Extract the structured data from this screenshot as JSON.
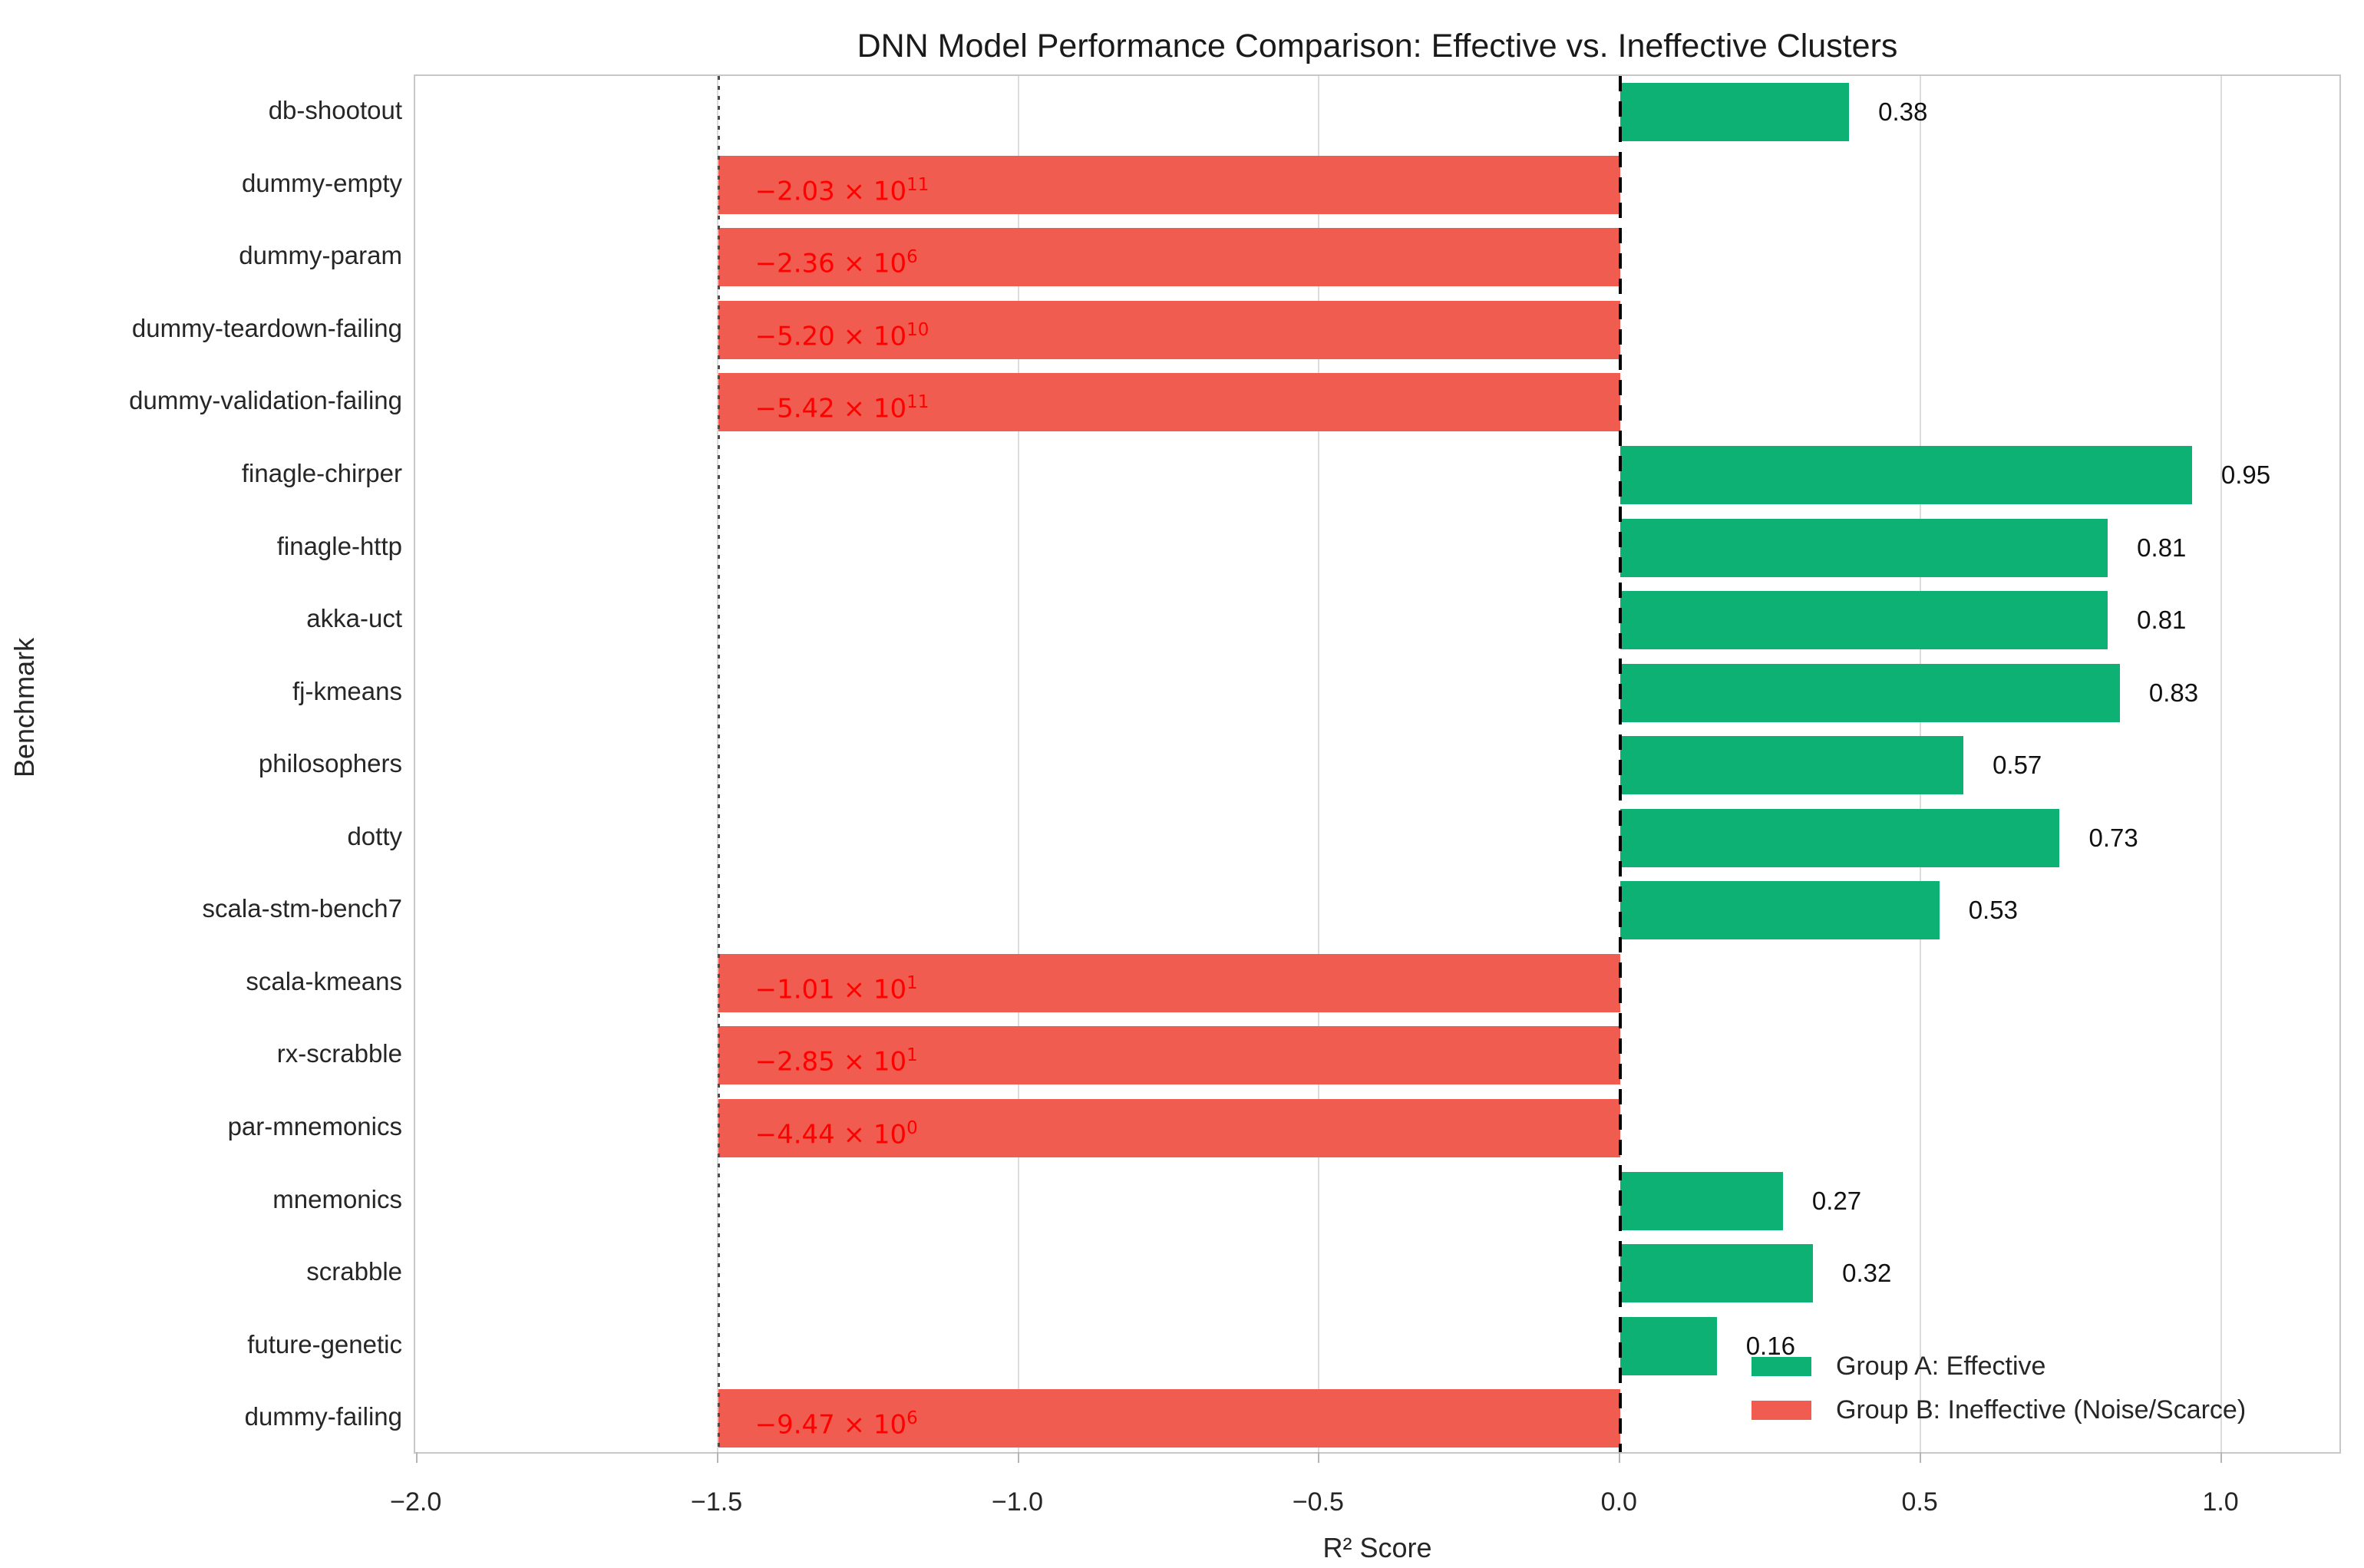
{
  "chart_data": {
    "type": "bar",
    "orientation": "horizontal",
    "title": "DNN Model Performance Comparison: Effective vs. Ineffective Clusters",
    "xlabel": "R² Score",
    "ylabel": "Benchmark",
    "xlim": [
      -2.0,
      1.2
    ],
    "xticks": [
      -2.0,
      -1.5,
      -1.0,
      -0.5,
      0.0,
      0.5,
      1.0
    ],
    "xtick_labels": [
      "−2.0",
      "−1.5",
      "−1.0",
      "−0.5",
      "0.0",
      "0.5",
      "1.0"
    ],
    "grid": true,
    "zero_line_x": 0.0,
    "negative_clip_x": -1.5,
    "bars": [
      {
        "name": "db-shootout",
        "group": "A",
        "value": 0.38,
        "label": "0.38"
      },
      {
        "name": "dummy-empty",
        "group": "B",
        "value": -203000000000.0,
        "clipped_at": -1.5,
        "label_mantissa": "−2.03 × 10",
        "label_exponent": "11"
      },
      {
        "name": "dummy-param",
        "group": "B",
        "value": -2360000.0,
        "clipped_at": -1.5,
        "label_mantissa": "−2.36 × 10",
        "label_exponent": "6"
      },
      {
        "name": "dummy-teardown-failing",
        "group": "B",
        "value": -52000000000.0,
        "clipped_at": -1.5,
        "label_mantissa": "−5.20 × 10",
        "label_exponent": "10"
      },
      {
        "name": "dummy-validation-failing",
        "group": "B",
        "value": -542000000000.0,
        "clipped_at": -1.5,
        "label_mantissa": "−5.42 × 10",
        "label_exponent": "11"
      },
      {
        "name": "finagle-chirper",
        "group": "A",
        "value": 0.95,
        "label": "0.95"
      },
      {
        "name": "finagle-http",
        "group": "A",
        "value": 0.81,
        "label": "0.81"
      },
      {
        "name": "akka-uct",
        "group": "A",
        "value": 0.81,
        "label": "0.81"
      },
      {
        "name": "fj-kmeans",
        "group": "A",
        "value": 0.83,
        "label": "0.83"
      },
      {
        "name": "philosophers",
        "group": "A",
        "value": 0.57,
        "label": "0.57"
      },
      {
        "name": "dotty",
        "group": "A",
        "value": 0.73,
        "label": "0.73"
      },
      {
        "name": "scala-stm-bench7",
        "group": "A",
        "value": 0.53,
        "label": "0.53"
      },
      {
        "name": "scala-kmeans",
        "group": "B",
        "value": -10.1,
        "clipped_at": -1.5,
        "label_mantissa": "−1.01 × 10",
        "label_exponent": "1"
      },
      {
        "name": "rx-scrabble",
        "group": "B",
        "value": -28.5,
        "clipped_at": -1.5,
        "label_mantissa": "−2.85 × 10",
        "label_exponent": "1"
      },
      {
        "name": "par-mnemonics",
        "group": "B",
        "value": -4.44,
        "clipped_at": -1.5,
        "label_mantissa": "−4.44 × 10",
        "label_exponent": "0"
      },
      {
        "name": "mnemonics",
        "group": "A",
        "value": 0.27,
        "label": "0.27"
      },
      {
        "name": "scrabble",
        "group": "A",
        "value": 0.32,
        "label": "0.32"
      },
      {
        "name": "future-genetic",
        "group": "A",
        "value": 0.16,
        "label": "0.16"
      },
      {
        "name": "dummy-failing",
        "group": "B",
        "value": -9470000.0,
        "clipped_at": -1.5,
        "label_mantissa": "−9.47 × 10",
        "label_exponent": "6"
      }
    ],
    "legend": {
      "position": "lower right",
      "entries": [
        {
          "label": "Group A: Effective",
          "color": "#0db173"
        },
        {
          "label": "Group B: Ineffective (Noise/Scarce)",
          "color": "#f05c50"
        }
      ]
    },
    "colors": {
      "group_a_fill": "#0db173",
      "group_b_fill": "#f05c50",
      "group_b_label_text": "#ff0000",
      "gridline": "#dcdcdc",
      "axis_border": "#c7c7c7",
      "text": "#262626"
    }
  }
}
